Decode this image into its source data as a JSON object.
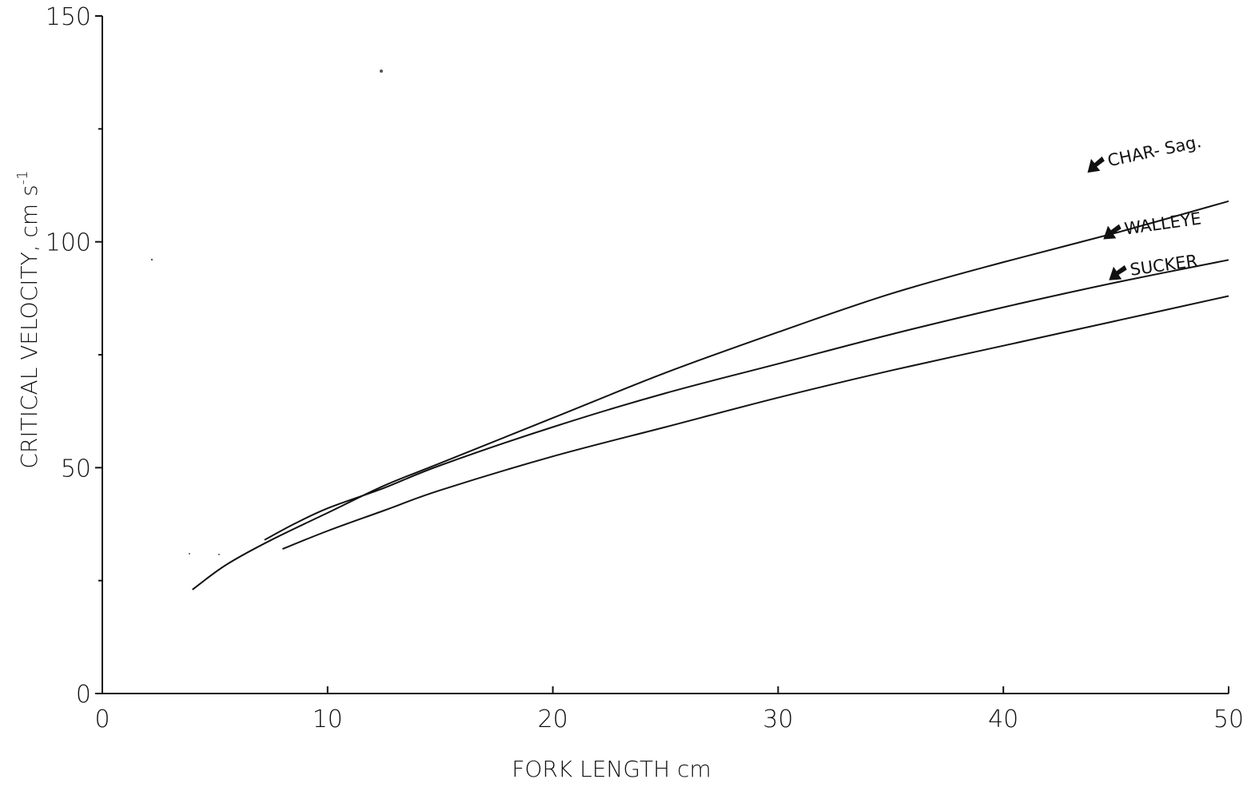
{
  "chart_data": {
    "type": "line",
    "xlabel": "FORK LENGTH cm",
    "ylabel": "CRITICAL VELOCITY, cm s",
    "ylabel_superscript": "-1",
    "xlim": [
      0,
      50
    ],
    "ylim": [
      0,
      150
    ],
    "x_ticks": [
      0,
      10,
      20,
      30,
      40,
      50
    ],
    "x_tick_labels": [
      "0",
      "10",
      "20",
      "30",
      "40",
      "50"
    ],
    "y_ticks": [
      0,
      50,
      100,
      150
    ],
    "y_tick_labels": [
      "0",
      "50",
      "100",
      "150"
    ],
    "grid": false,
    "series": [
      {
        "name": "CHAR- Sag.",
        "x": [
          4,
          5.5,
          7.5,
          10,
          12.5,
          15,
          20,
          25,
          30,
          35,
          40,
          45,
          50
        ],
        "y": [
          23,
          28.5,
          34,
          40,
          46,
          51,
          61,
          71,
          80,
          88.5,
          95.5,
          102,
          109
        ]
      },
      {
        "name": "WALLEYE",
        "x": [
          7.2,
          8.5,
          10,
          12.5,
          15,
          20,
          25,
          30,
          35,
          40,
          45,
          50
        ],
        "y": [
          34,
          37.5,
          41,
          45.5,
          50.5,
          59,
          66.5,
          73,
          79.5,
          85.5,
          91,
          96
        ]
      },
      {
        "name": "SUCKER",
        "x": [
          8,
          10,
          12.5,
          15,
          20,
          25,
          30,
          35,
          40,
          45,
          50
        ],
        "y": [
          32,
          36,
          40.5,
          45,
          52.5,
          59,
          65.5,
          71.5,
          77,
          82.5,
          88
        ]
      }
    ]
  }
}
